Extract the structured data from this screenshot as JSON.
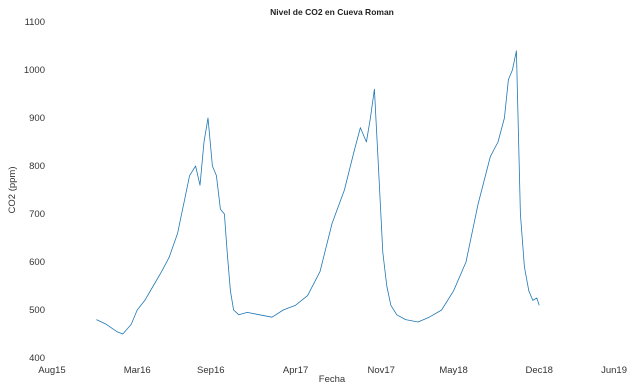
{
  "chart_data": {
    "type": "line",
    "title": "Nivel de CO2 en Cueva Roman",
    "xlabel": "Fecha",
    "ylabel": "CO2 (ppm)",
    "xlim": [
      "2015-08-01",
      "2019-06-01"
    ],
    "ylim": [
      400,
      1100
    ],
    "x_ticks": [
      {
        "label": "Aug15",
        "date": "2015-08-01"
      },
      {
        "label": "Mar16",
        "date": "2016-03-01"
      },
      {
        "label": "Sep16",
        "date": "2016-09-01"
      },
      {
        "label": "Apr17",
        "date": "2017-04-01"
      },
      {
        "label": "Nov17",
        "date": "2017-11-01"
      },
      {
        "label": "May18",
        "date": "2018-05-01"
      },
      {
        "label": "Dec18",
        "date": "2018-12-01"
      },
      {
        "label": "Jun19",
        "date": "2019-06-01"
      }
    ],
    "y_ticks": [
      400,
      500,
      600,
      700,
      800,
      900,
      1000,
      1100
    ],
    "grid": false,
    "line_color": "#1f77b4",
    "series": [
      {
        "x": [
          "2015-11-20",
          "2015-12-15",
          "2016-01-10",
          "2016-01-25",
          "2016-02-15",
          "2016-03-01",
          "2016-03-20",
          "2016-04-10",
          "2016-05-01",
          "2016-05-20",
          "2016-06-10",
          "2016-06-25",
          "2016-07-10",
          "2016-07-25",
          "2016-08-05",
          "2016-08-15",
          "2016-08-25",
          "2016-09-05",
          "2016-09-15",
          "2016-09-25",
          "2016-10-05",
          "2016-10-12",
          "2016-10-20",
          "2016-10-28",
          "2016-11-10",
          "2016-12-01",
          "2017-01-01",
          "2017-02-01",
          "2017-03-01",
          "2017-04-01",
          "2017-05-01",
          "2017-06-01",
          "2017-07-01",
          "2017-08-01",
          "2017-08-25",
          "2017-09-10",
          "2017-09-25",
          "2017-10-05",
          "2017-10-15",
          "2017-10-25",
          "2017-11-05",
          "2017-11-15",
          "2017-11-25",
          "2017-12-10",
          "2018-01-01",
          "2018-02-01",
          "2018-03-01",
          "2018-04-01",
          "2018-05-01",
          "2018-06-01",
          "2018-07-01",
          "2018-08-01",
          "2018-08-20",
          "2018-09-05",
          "2018-09-15",
          "2018-09-25",
          "2018-10-05",
          "2018-10-15",
          "2018-10-25",
          "2018-11-05",
          "2018-11-15",
          "2018-11-25",
          "2018-12-01"
        ],
        "y": [
          480,
          470,
          455,
          450,
          470,
          500,
          520,
          550,
          580,
          610,
          660,
          720,
          780,
          800,
          760,
          850,
          900,
          800,
          780,
          710,
          700,
          620,
          540,
          500,
          490,
          495,
          490,
          485,
          500,
          510,
          530,
          580,
          680,
          750,
          830,
          880,
          850,
          900,
          960,
          800,
          620,
          550,
          510,
          490,
          480,
          475,
          485,
          500,
          540,
          600,
          720,
          820,
          850,
          900,
          980,
          1000,
          1040,
          700,
          590,
          540,
          520,
          525,
          510
        ]
      }
    ]
  }
}
